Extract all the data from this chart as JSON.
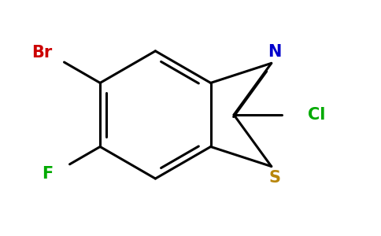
{
  "bg_color": "#ffffff",
  "bond_color": "#000000",
  "bond_width": 2.2,
  "atom_colors": {
    "Br": "#cc0000",
    "F": "#00aa00",
    "N": "#0000cc",
    "S": "#b8860b",
    "Cl": "#00aa00"
  },
  "font_size": 15,
  "figsize": [
    4.84,
    3.0
  ],
  "dpi": 100
}
